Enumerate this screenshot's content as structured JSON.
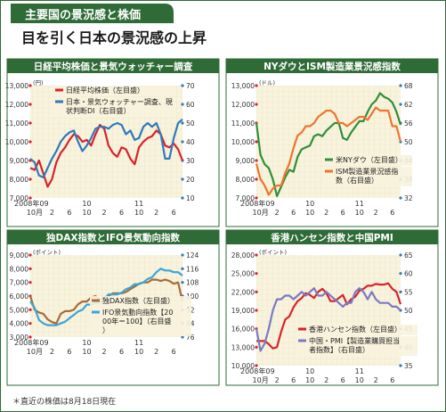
{
  "header": {
    "tag": "主要国の景況感と株価",
    "headline": "目を引く日本の景況感の上昇",
    "footnote": "＊直近の株価は8月18日現在"
  },
  "colors": {
    "green": "#2e6b36",
    "panel_bg": "#f8f3dd",
    "red": "#d6232d",
    "blue": "#2f79bd",
    "dark_green": "#2f8f3a",
    "orange": "#ec7530",
    "brown": "#a86b3a",
    "light_blue": "#3aa6d8",
    "purple": "#7a7ac4"
  },
  "chart_data": [
    {
      "type": "line",
      "title": "日経平均株価と景気ウォッチャー調査",
      "xticks": [
        "2008年09",
        "10月",
        "2",
        "6",
        "10",
        "2",
        "6",
        "10",
        "2",
        "6"
      ],
      "year_labels": [
        "10",
        "11"
      ],
      "left_unit": "(円)",
      "left_ticks": [
        "13,000",
        "12,000",
        "11,000",
        "10,000",
        "9,000",
        "8,000",
        "7,000"
      ],
      "right_ticks": [
        "70",
        "60",
        "50",
        "40",
        "30",
        "20",
        "10"
      ],
      "ylim_left": [
        7000,
        13000
      ],
      "ylim_right": [
        10,
        70
      ],
      "series": [
        {
          "name": "日経平均株価（左目盛）",
          "axis": "left",
          "color": "#d6232d",
          "values": [
            8600,
            8500,
            9000,
            8300,
            7600,
            8000,
            8900,
            9400,
            9700,
            10100,
            10400,
            10300,
            10000,
            10100,
            9800,
            10400,
            10900,
            10700,
            9800,
            9400,
            9200,
            9700,
            9600,
            9100,
            8800,
            9700,
            10000,
            10200,
            10300,
            10600,
            10400,
            9800,
            9700,
            9900,
            9600,
            9000
          ]
        },
        {
          "name": "日本・景気ウォッチャー調査、現状判断DI（右目盛）",
          "axis": "right",
          "color": "#2f79bd",
          "values": [
            31,
            29,
            22,
            21,
            26,
            31,
            35,
            40,
            43,
            45,
            46,
            40,
            35,
            38,
            42,
            47,
            48,
            48,
            47,
            49,
            50,
            49,
            44,
            46,
            41,
            42,
            48,
            50,
            48,
            50,
            44,
            31,
            31,
            42,
            50,
            52
          ]
        }
      ]
    },
    {
      "type": "line",
      "title": "NYダウとISM製造業景況感指数",
      "xticks": [
        "2008年09",
        "10月",
        "2",
        "6",
        "10",
        "2",
        "6",
        "10",
        "2",
        "6"
      ],
      "year_labels": [
        "10",
        "11"
      ],
      "left_unit": "(ドル)",
      "left_ticks": [
        "13,000",
        "12,000",
        "11,000",
        "10,000",
        "9,000",
        "8,000",
        "7,000"
      ],
      "right_ticks": [
        "68",
        "62",
        "56",
        "50",
        "44",
        "38",
        "32"
      ],
      "ylim_left": [
        7000,
        13000
      ],
      "ylim_right": [
        32,
        68
      ],
      "series": [
        {
          "name": "米NYダウ（左目盛）",
          "axis": "left",
          "color": "#2f8f3a",
          "values": [
            11000,
            9300,
            8800,
            8600,
            8000,
            7100,
            7600,
            8100,
            8500,
            8400,
            9200,
            9600,
            9700,
            9800,
            10300,
            10400,
            10300,
            10600,
            10800,
            11000,
            11000,
            10200,
            10100,
            10500,
            10800,
            11100,
            11100,
            11600,
            12000,
            12200,
            12600,
            12400,
            12300,
            12100,
            11600,
            10900
          ]
        },
        {
          "name": "ISM製造業景況感指数（右目盛）",
          "axis": "right",
          "color": "#ec7530",
          "values": [
            43,
            38,
            36,
            33,
            35,
            36,
            36,
            40,
            43,
            48,
            52,
            53,
            55,
            55,
            56,
            58,
            59,
            60,
            60,
            59,
            56,
            56,
            55,
            56,
            57,
            58,
            58,
            57,
            59,
            61,
            60,
            60,
            60,
            55,
            55,
            50
          ]
        }
      ]
    },
    {
      "type": "line",
      "title": "独DAX指数とIFO景気動向指数",
      "xticks": [
        "2008年09",
        "10月",
        "2",
        "6",
        "10",
        "2",
        "6",
        "10",
        "2",
        "6"
      ],
      "year_labels": [
        "10",
        "11"
      ],
      "left_unit": "(ポイント)",
      "left_ticks": [
        "9,000",
        "8,000",
        "7,000",
        "6,000",
        "5,000",
        "4,000",
        "3,000"
      ],
      "right_ticks": [
        "124",
        "116",
        "108",
        "100",
        "92",
        "84",
        "76"
      ],
      "ylim_left": [
        3000,
        9000
      ],
      "ylim_right": [
        76,
        124
      ],
      "series": [
        {
          "name": "独DAX指数（左目盛）",
          "axis": "left",
          "color": "#a86b3a",
          "values": [
            6000,
            5000,
            4800,
            4700,
            4300,
            4100,
            4000,
            4700,
            4900,
            4900,
            5000,
            5400,
            5600,
            5600,
            5900,
            6000,
            5700,
            5900,
            6000,
            6200,
            6200,
            6200,
            6300,
            6500,
            6700,
            6900,
            7000,
            7000,
            7200,
            7200,
            7100,
            7200,
            7100,
            6900,
            7000,
            5600
          ]
        },
        {
          "name": "IFO景気動向指数【2000年＝100】（右目盛）",
          "axis": "right",
          "color": "#3aa6d8",
          "values": [
            97,
            93,
            86,
            84,
            83,
            83,
            83,
            84,
            85,
            87,
            89,
            91,
            92,
            95,
            95,
            96,
            96,
            98,
            101,
            101,
            101,
            102,
            104,
            105,
            107,
            107,
            108,
            110,
            111,
            114,
            116,
            115,
            115,
            114,
            114,
            112
          ]
        }
      ]
    },
    {
      "type": "line",
      "title": "香港ハンセン指数と中国PMI",
      "xticks": [
        "2008年09",
        "10月",
        "2",
        "6",
        "10",
        "2",
        "6",
        "10",
        "2",
        "6"
      ],
      "year_labels": [
        "10",
        "11"
      ],
      "left_unit": "(ポイント)",
      "left_ticks": [
        "28,000",
        "25,000",
        "22,000",
        "19,000",
        "16,000",
        "13,000",
        "10,000"
      ],
      "right_ticks": [
        "65",
        "60",
        "55",
        "50",
        "45",
        "40",
        "35"
      ],
      "ylim_left": [
        10000,
        28000
      ],
      "ylim_right": [
        35,
        65
      ],
      "series": [
        {
          "name": "香港ハンセン指数（左目盛）",
          "axis": "left",
          "color": "#d6232d",
          "values": [
            14000,
            14000,
            14000,
            13500,
            12800,
            13000,
            15500,
            17500,
            18000,
            19500,
            20500,
            21000,
            21800,
            21500,
            21000,
            22000,
            22500,
            21800,
            20500,
            20500,
            21000,
            21500,
            20000,
            20800,
            21200,
            22200,
            22500,
            23000,
            23000,
            23300,
            23200,
            23200,
            23400,
            22500,
            22000,
            20000
          ]
        },
        {
          "name": "中国・PMI【製造業購買担当者指数】（右目盛）",
          "axis": "right",
          "color": "#7a7ac4",
          "values": [
            45,
            39,
            41,
            45,
            50,
            53,
            53,
            54,
            54,
            53,
            54,
            55,
            54,
            55,
            56,
            54,
            54,
            55,
            54,
            53,
            52,
            51,
            52,
            52,
            55,
            56,
            55,
            53,
            55,
            53,
            52,
            52,
            52,
            51,
            51,
            50
          ]
        }
      ]
    }
  ]
}
